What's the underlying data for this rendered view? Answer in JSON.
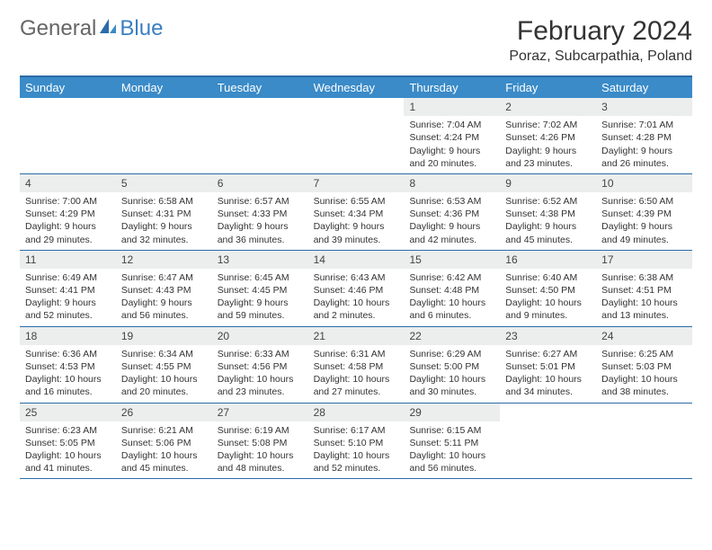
{
  "brand": {
    "part1": "General",
    "part2": "Blue"
  },
  "title": "February 2024",
  "location": "Poraz, Subcarpathia, Poland",
  "colors": {
    "header_bg": "#3a8bc8",
    "border": "#2b6ca8",
    "daynum_bg": "#eceded",
    "brand_blue": "#3a7fc4"
  },
  "dayHeaders": [
    "Sunday",
    "Monday",
    "Tuesday",
    "Wednesday",
    "Thursday",
    "Friday",
    "Saturday"
  ],
  "weeks": [
    [
      null,
      null,
      null,
      null,
      {
        "n": "1",
        "sr": "Sunrise: 7:04 AM",
        "ss": "Sunset: 4:24 PM",
        "dl": "Daylight: 9 hours and 20 minutes."
      },
      {
        "n": "2",
        "sr": "Sunrise: 7:02 AM",
        "ss": "Sunset: 4:26 PM",
        "dl": "Daylight: 9 hours and 23 minutes."
      },
      {
        "n": "3",
        "sr": "Sunrise: 7:01 AM",
        "ss": "Sunset: 4:28 PM",
        "dl": "Daylight: 9 hours and 26 minutes."
      }
    ],
    [
      {
        "n": "4",
        "sr": "Sunrise: 7:00 AM",
        "ss": "Sunset: 4:29 PM",
        "dl": "Daylight: 9 hours and 29 minutes."
      },
      {
        "n": "5",
        "sr": "Sunrise: 6:58 AM",
        "ss": "Sunset: 4:31 PM",
        "dl": "Daylight: 9 hours and 32 minutes."
      },
      {
        "n": "6",
        "sr": "Sunrise: 6:57 AM",
        "ss": "Sunset: 4:33 PM",
        "dl": "Daylight: 9 hours and 36 minutes."
      },
      {
        "n": "7",
        "sr": "Sunrise: 6:55 AM",
        "ss": "Sunset: 4:34 PM",
        "dl": "Daylight: 9 hours and 39 minutes."
      },
      {
        "n": "8",
        "sr": "Sunrise: 6:53 AM",
        "ss": "Sunset: 4:36 PM",
        "dl": "Daylight: 9 hours and 42 minutes."
      },
      {
        "n": "9",
        "sr": "Sunrise: 6:52 AM",
        "ss": "Sunset: 4:38 PM",
        "dl": "Daylight: 9 hours and 45 minutes."
      },
      {
        "n": "10",
        "sr": "Sunrise: 6:50 AM",
        "ss": "Sunset: 4:39 PM",
        "dl": "Daylight: 9 hours and 49 minutes."
      }
    ],
    [
      {
        "n": "11",
        "sr": "Sunrise: 6:49 AM",
        "ss": "Sunset: 4:41 PM",
        "dl": "Daylight: 9 hours and 52 minutes."
      },
      {
        "n": "12",
        "sr": "Sunrise: 6:47 AM",
        "ss": "Sunset: 4:43 PM",
        "dl": "Daylight: 9 hours and 56 minutes."
      },
      {
        "n": "13",
        "sr": "Sunrise: 6:45 AM",
        "ss": "Sunset: 4:45 PM",
        "dl": "Daylight: 9 hours and 59 minutes."
      },
      {
        "n": "14",
        "sr": "Sunrise: 6:43 AM",
        "ss": "Sunset: 4:46 PM",
        "dl": "Daylight: 10 hours and 2 minutes."
      },
      {
        "n": "15",
        "sr": "Sunrise: 6:42 AM",
        "ss": "Sunset: 4:48 PM",
        "dl": "Daylight: 10 hours and 6 minutes."
      },
      {
        "n": "16",
        "sr": "Sunrise: 6:40 AM",
        "ss": "Sunset: 4:50 PM",
        "dl": "Daylight: 10 hours and 9 minutes."
      },
      {
        "n": "17",
        "sr": "Sunrise: 6:38 AM",
        "ss": "Sunset: 4:51 PM",
        "dl": "Daylight: 10 hours and 13 minutes."
      }
    ],
    [
      {
        "n": "18",
        "sr": "Sunrise: 6:36 AM",
        "ss": "Sunset: 4:53 PM",
        "dl": "Daylight: 10 hours and 16 minutes."
      },
      {
        "n": "19",
        "sr": "Sunrise: 6:34 AM",
        "ss": "Sunset: 4:55 PM",
        "dl": "Daylight: 10 hours and 20 minutes."
      },
      {
        "n": "20",
        "sr": "Sunrise: 6:33 AM",
        "ss": "Sunset: 4:56 PM",
        "dl": "Daylight: 10 hours and 23 minutes."
      },
      {
        "n": "21",
        "sr": "Sunrise: 6:31 AM",
        "ss": "Sunset: 4:58 PM",
        "dl": "Daylight: 10 hours and 27 minutes."
      },
      {
        "n": "22",
        "sr": "Sunrise: 6:29 AM",
        "ss": "Sunset: 5:00 PM",
        "dl": "Daylight: 10 hours and 30 minutes."
      },
      {
        "n": "23",
        "sr": "Sunrise: 6:27 AM",
        "ss": "Sunset: 5:01 PM",
        "dl": "Daylight: 10 hours and 34 minutes."
      },
      {
        "n": "24",
        "sr": "Sunrise: 6:25 AM",
        "ss": "Sunset: 5:03 PM",
        "dl": "Daylight: 10 hours and 38 minutes."
      }
    ],
    [
      {
        "n": "25",
        "sr": "Sunrise: 6:23 AM",
        "ss": "Sunset: 5:05 PM",
        "dl": "Daylight: 10 hours and 41 minutes."
      },
      {
        "n": "26",
        "sr": "Sunrise: 6:21 AM",
        "ss": "Sunset: 5:06 PM",
        "dl": "Daylight: 10 hours and 45 minutes."
      },
      {
        "n": "27",
        "sr": "Sunrise: 6:19 AM",
        "ss": "Sunset: 5:08 PM",
        "dl": "Daylight: 10 hours and 48 minutes."
      },
      {
        "n": "28",
        "sr": "Sunrise: 6:17 AM",
        "ss": "Sunset: 5:10 PM",
        "dl": "Daylight: 10 hours and 52 minutes."
      },
      {
        "n": "29",
        "sr": "Sunrise: 6:15 AM",
        "ss": "Sunset: 5:11 PM",
        "dl": "Daylight: 10 hours and 56 minutes."
      },
      null,
      null
    ]
  ]
}
